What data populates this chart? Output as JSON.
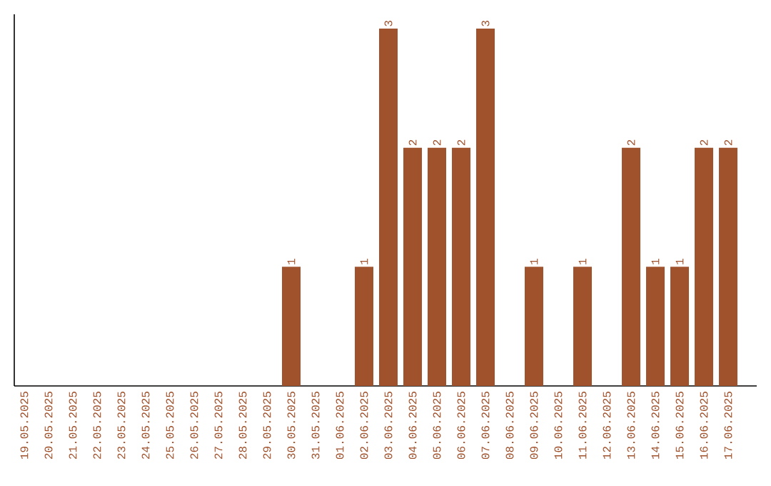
{
  "chart_data": {
    "type": "bar",
    "categories": [
      "19.05.2025",
      "20.05.2025",
      "21.05.2025",
      "22.05.2025",
      "23.05.2025",
      "24.05.2025",
      "25.05.2025",
      "26.05.2025",
      "27.05.2025",
      "28.05.2025",
      "29.05.2025",
      "30.05.2025",
      "31.05.2025",
      "01.06.2025",
      "02.06.2025",
      "03.06.2025",
      "04.06.2025",
      "05.06.2025",
      "06.06.2025",
      "07.06.2025",
      "08.06.2025",
      "09.06.2025",
      "10.06.2025",
      "11.06.2025",
      "12.06.2025",
      "13.06.2025",
      "14.06.2025",
      "15.06.2025",
      "16.06.2025",
      "17.06.2025"
    ],
    "values": [
      0,
      0,
      0,
      0,
      0,
      0,
      0,
      0,
      0,
      0,
      0,
      1,
      0,
      0,
      1,
      3,
      2,
      2,
      2,
      3,
      0,
      1,
      0,
      1,
      0,
      2,
      1,
      1,
      2,
      2
    ],
    "value_labels": [
      null,
      null,
      null,
      null,
      null,
      null,
      null,
      null,
      null,
      null,
      null,
      "1",
      null,
      null,
      "1",
      "3",
      "2",
      "2",
      "2",
      "3",
      null,
      "1",
      null,
      "1",
      null,
      "2",
      "1",
      "1",
      "2",
      "2"
    ],
    "color": "#a0522d",
    "ylim": [
      0,
      3.12
    ],
    "tick_labels": "x"
  }
}
